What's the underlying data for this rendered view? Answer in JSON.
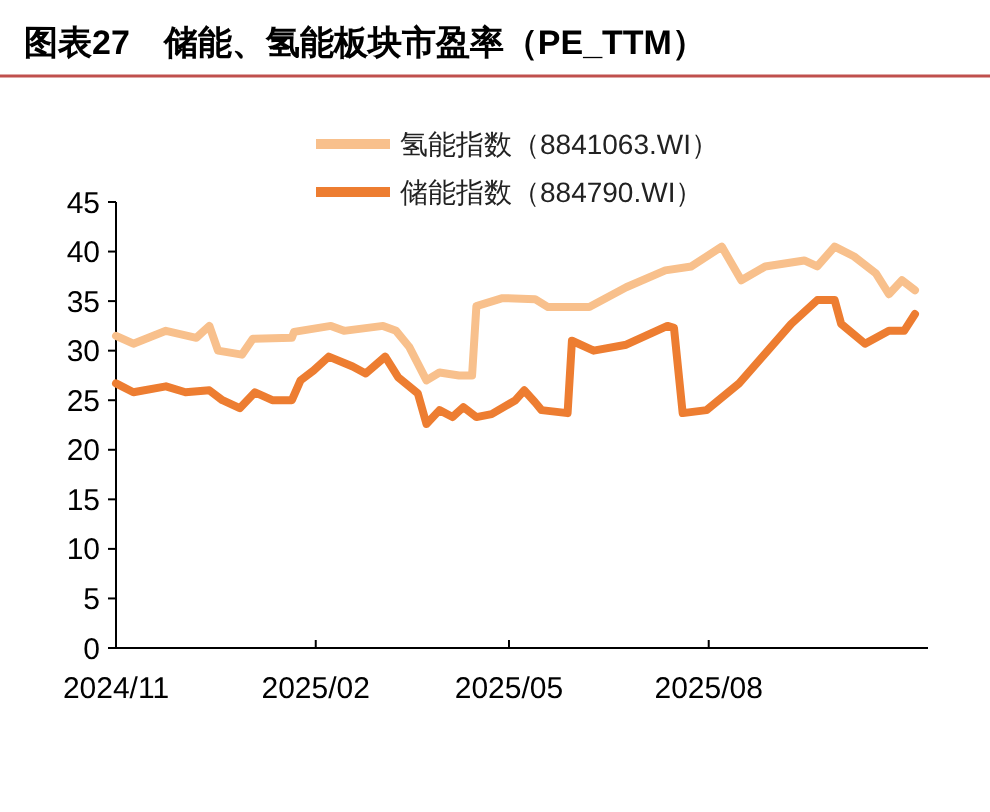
{
  "chart_data": {
    "type": "line",
    "title": "图表27　储能、氢能板块市盈率（PE_TTM）",
    "series": [
      {
        "name": "氢能指数（8841063.WI）",
        "color": "#f8c08c",
        "x": [
          "2024-11-01",
          "2024-11-09",
          "2024-11-24",
          "2024-12-08",
          "2024-12-14",
          "2024-12-18",
          "2024-12-29",
          "2025-01-03",
          "2025-01-21",
          "2025-01-22",
          "2025-02-08",
          "2025-02-14",
          "2025-03-04",
          "2025-03-10",
          "2025-03-16",
          "2025-03-24",
          "2025-03-30",
          "2025-04-08",
          "2025-04-14",
          "2025-04-16",
          "2025-04-28",
          "2025-05-13",
          "2025-05-19",
          "2025-06-07",
          "2025-06-24",
          "2025-07-12",
          "2025-07-24",
          "2025-08-07",
          "2025-08-16",
          "2025-08-27",
          "2025-09-14",
          "2025-09-20",
          "2025-09-28",
          "2025-10-07",
          "2025-10-17",
          "2025-10-23",
          "2025-10-29",
          "2025-11-04"
        ],
        "values": [
          31.5,
          30.7,
          32,
          31.3,
          32.5,
          30,
          29.6,
          31.2,
          31.3,
          31.9,
          32.5,
          32,
          32.5,
          32,
          30.4,
          27,
          27.8,
          27.5,
          27.5,
          34.5,
          35.3,
          35.2,
          34.4,
          34.4,
          36.4,
          38.1,
          38.5,
          40.5,
          37.1,
          38.5,
          39.1,
          38.5,
          40.5,
          39.5,
          37.8,
          35.7,
          37.1,
          36.1
        ]
      },
      {
        "name": "储能指数（884790.WI）",
        "color": "#ed7d31",
        "x": [
          "2024-11-01",
          "2024-11-09",
          "2024-11-24",
          "2024-12-03",
          "2024-12-14",
          "2024-12-20",
          "2024-12-28",
          "2025-01-04",
          "2025-01-12",
          "2025-01-21",
          "2025-01-25",
          "2025-01-31",
          "2025-02-07",
          "2025-02-18",
          "2025-02-24",
          "2025-03-05",
          "2025-03-11",
          "2025-03-20",
          "2025-03-24",
          "2025-03-30",
          "2025-04-05",
          "2025-04-10",
          "2025-04-16",
          "2025-04-23",
          "2025-05-04",
          "2025-05-08",
          "2025-05-13",
          "2025-05-16",
          "2025-05-28",
          "2025-05-30",
          "2025-06-09",
          "2025-06-24",
          "2025-07-13",
          "2025-07-16",
          "2025-07-20",
          "2025-07-31",
          "2025-08-15",
          "2025-08-27",
          "2025-09-08",
          "2025-09-20",
          "2025-09-28",
          "2025-10-01",
          "2025-10-12",
          "2025-10-23",
          "2025-10-30",
          "2025-11-04"
        ],
        "values": [
          26.7,
          25.8,
          26.4,
          25.8,
          26,
          25,
          24.2,
          25.8,
          25,
          25,
          27,
          28,
          29.4,
          28.4,
          27.7,
          29.4,
          27.3,
          25.7,
          22.6,
          24,
          23.3,
          24.3,
          23.3,
          23.6,
          25,
          26,
          24.8,
          24,
          23.7,
          31,
          30,
          30.6,
          32.5,
          32.3,
          23.7,
          24,
          26.7,
          29.7,
          32.7,
          35.1,
          35.1,
          32.7,
          30.7,
          32,
          32,
          33.7
        ]
      }
    ],
    "xlim": [
      "2024-11-01",
      "2025-11-10"
    ],
    "xticks": [
      {
        "value": "2024-11-01",
        "label": "2024/11"
      },
      {
        "value": "2025-02-01",
        "label": "2025/02"
      },
      {
        "value": "2025-05-01",
        "label": "2025/05"
      },
      {
        "value": "2025-08-01",
        "label": "2025/08"
      }
    ],
    "ylim": [
      0,
      45
    ],
    "yticks": [
      0,
      5,
      10,
      15,
      20,
      25,
      30,
      35,
      40,
      45
    ],
    "legend": "top",
    "grid": false,
    "marker": "none",
    "line_style": "solid"
  }
}
